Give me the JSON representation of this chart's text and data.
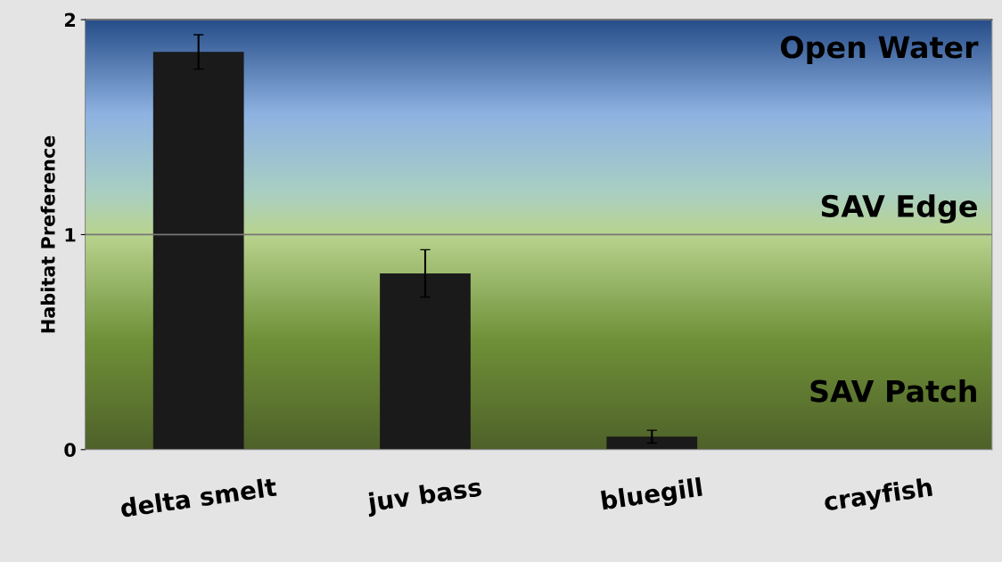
{
  "chart_data": {
    "type": "bar",
    "ylabel": "Habitat Preference",
    "categories": [
      "delta smelt",
      "juv bass",
      "bluegill",
      "crayfish"
    ],
    "values": [
      1.85,
      0.82,
      0.06,
      0
    ],
    "errors": [
      0.08,
      0.11,
      0.03,
      null
    ],
    "color": "#1a1a1a",
    "ylim": [
      0,
      2
    ],
    "yticks": [
      0,
      1,
      2
    ],
    "grid": "y",
    "annotations": [
      "Open Water",
      "SAV Edge",
      "SAV Patch"
    ]
  }
}
